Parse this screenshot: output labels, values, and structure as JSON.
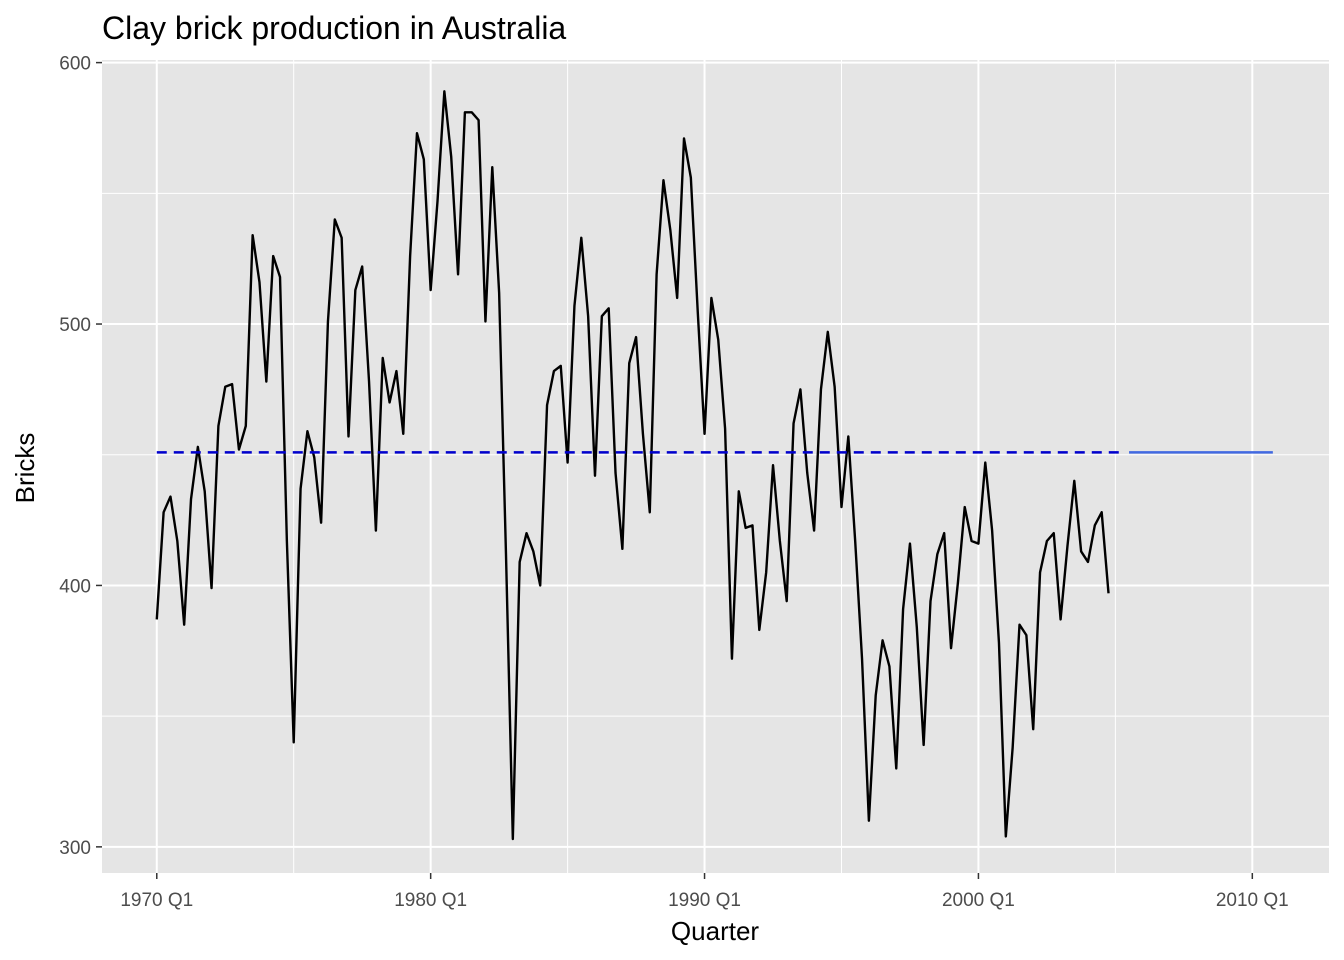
{
  "chart_data": {
    "type": "line",
    "title": "Clay brick production in Australia",
    "xlabel": "Quarter",
    "ylabel": "Bricks",
    "x_ticks": [
      "1970 Q1",
      "1980 Q1",
      "1990 Q1",
      "2000 Q1",
      "2010 Q1"
    ],
    "y_ticks": [
      "300",
      "400",
      "500",
      "600"
    ],
    "xlim": [
      1968,
      2012.8
    ],
    "ylim": [
      290,
      601
    ],
    "grid": true,
    "legend": "none",
    "x_start": "1970 Q1",
    "series": [
      {
        "role": "observed",
        "color": "#000000",
        "style": "solid",
        "values": [
          387,
          428,
          434,
          417,
          385,
          433,
          453,
          436,
          399,
          461,
          476,
          477,
          452,
          461,
          534,
          516,
          478,
          526,
          518,
          417,
          340,
          437,
          459,
          449,
          424,
          501,
          540,
          533,
          457,
          513,
          522,
          478,
          421,
          487,
          470,
          482,
          458,
          526,
          573,
          563,
          513,
          547,
          589,
          564,
          519,
          581,
          581,
          578,
          501,
          560,
          512,
          412,
          303,
          409,
          420,
          413,
          400,
          469,
          482,
          484,
          447,
          507,
          533,
          503,
          442,
          503,
          506,
          443,
          414,
          485,
          495,
          458,
          428,
          519,
          555,
          536,
          510,
          571,
          556,
          505,
          458,
          510,
          494,
          460,
          372,
          436,
          422,
          423,
          383,
          405,
          446,
          417,
          394,
          462,
          475,
          443,
          421,
          475,
          497,
          476,
          430,
          457,
          417,
          372,
          310,
          358,
          379,
          369,
          330,
          391,
          416,
          384,
          339,
          394,
          412,
          420,
          376,
          401,
          430,
          417,
          416,
          447,
          421,
          378,
          304,
          338,
          385,
          381,
          345,
          405,
          417,
          420,
          387,
          415,
          440,
          413,
          409,
          423,
          428,
          397
        ]
      },
      {
        "role": "fitted-mean",
        "color": "#0000cd",
        "style": "dashed",
        "x_range": [
          "1970 Q1",
          "2005 Q2"
        ],
        "value": 450.9
      },
      {
        "role": "forecast-mean",
        "color": "#4169e1",
        "style": "solid",
        "x_range": [
          "2005 Q3",
          "2010 Q4"
        ],
        "value": 450.9
      }
    ],
    "colors": {
      "panel_background": "#e5e5e5",
      "gridline": "#ffffff",
      "tick_text": "#4d4d4d"
    }
  }
}
